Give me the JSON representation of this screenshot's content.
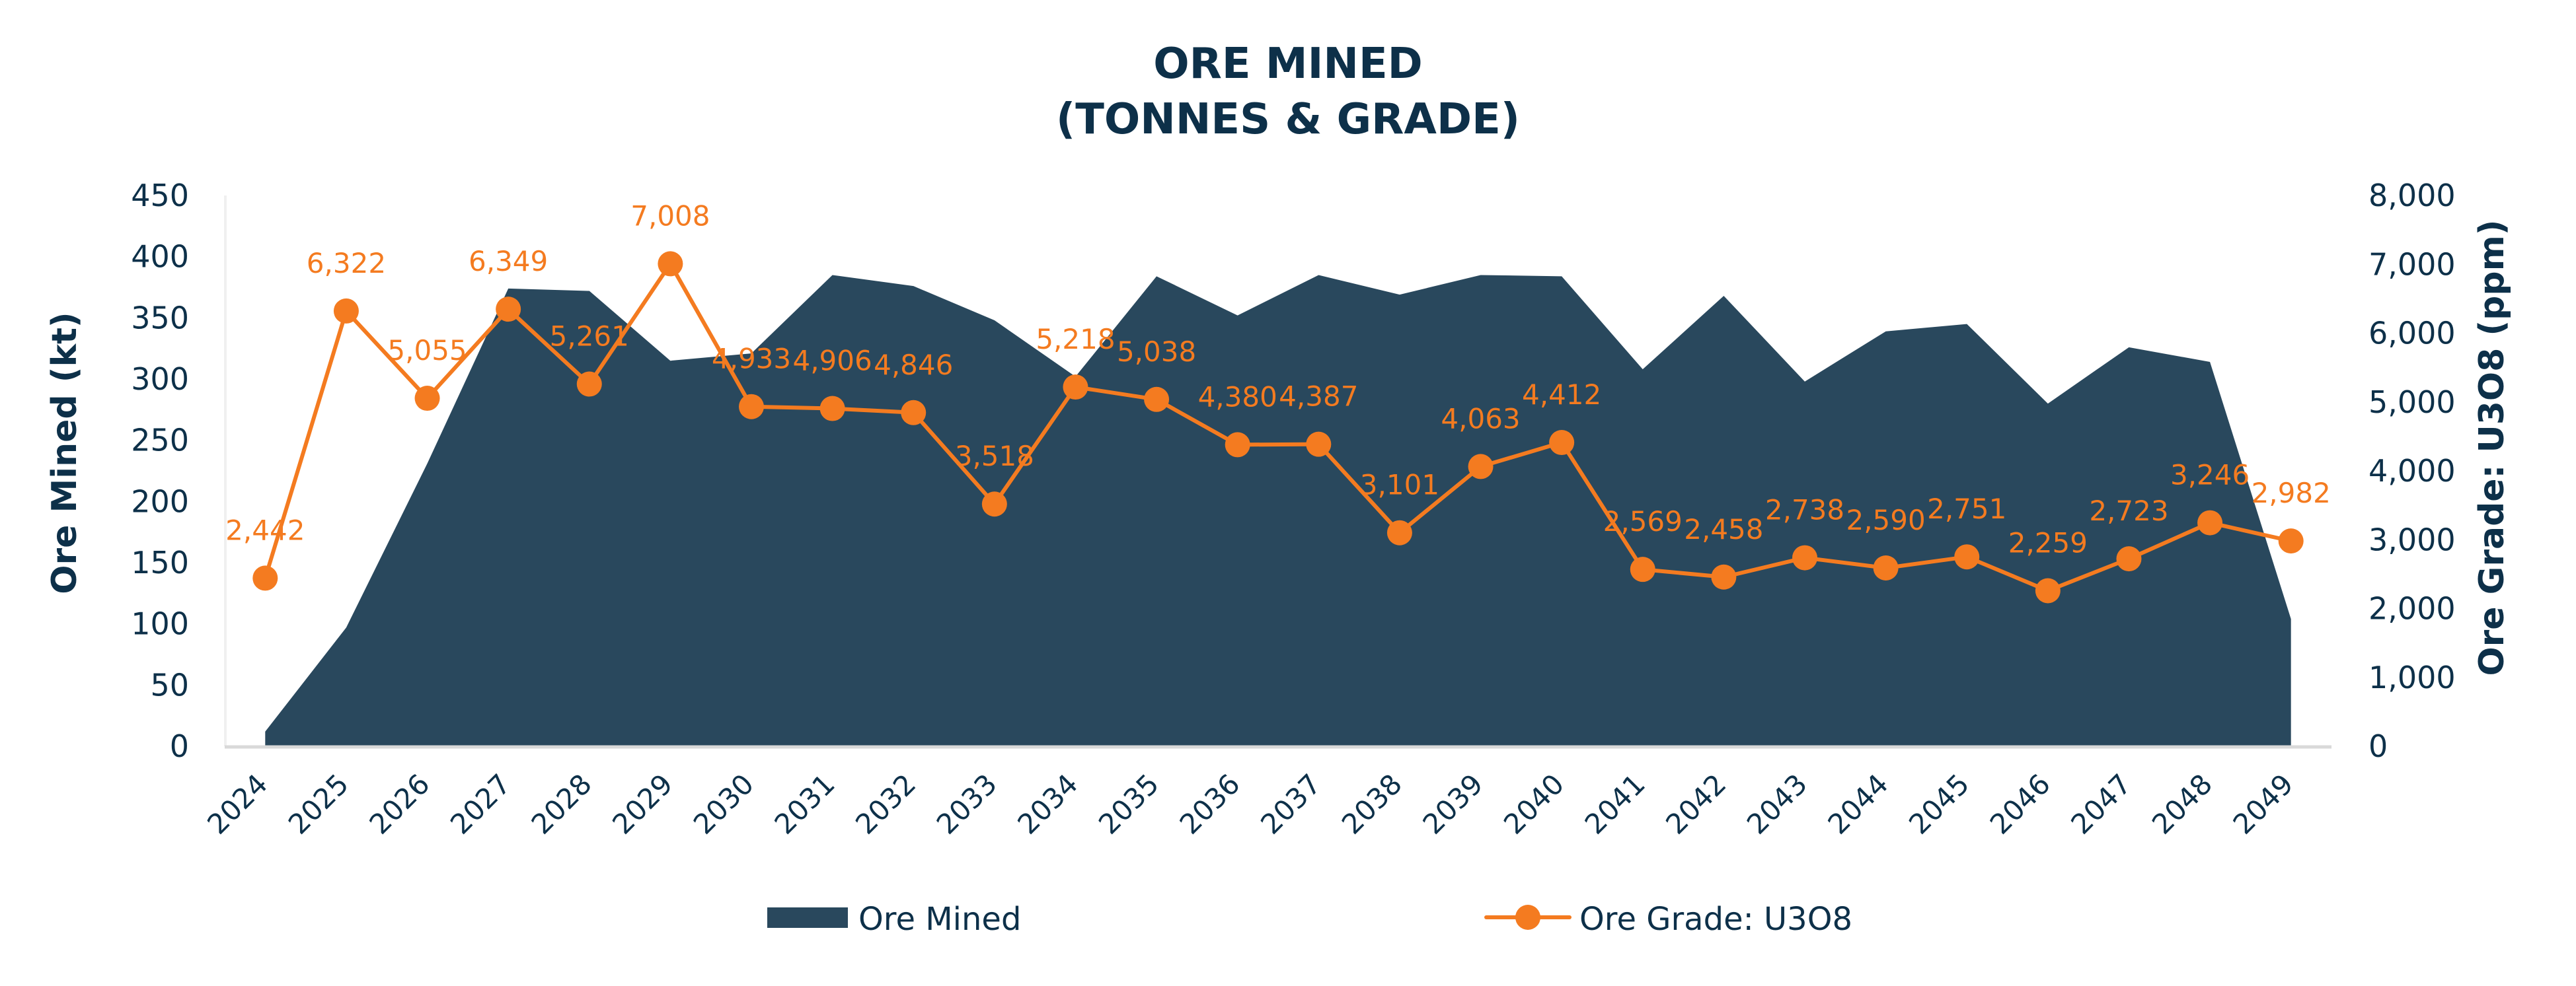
{
  "chart_data": {
    "type": "area+line",
    "title_lines": [
      "ORE MINED",
      "(TONNES & GRADE)"
    ],
    "categories": [
      "2024",
      "2025",
      "2026",
      "2027",
      "2028",
      "2029",
      "2030",
      "2031",
      "2032",
      "2033",
      "2034",
      "2035",
      "2036",
      "2037",
      "2038",
      "2039",
      "2040",
      "2041",
      "2042",
      "2043",
      "2044",
      "2045",
      "2046",
      "2047",
      "2048",
      "2049"
    ],
    "y_left": {
      "label": "Ore Mined (kt)",
      "range": [
        0,
        450
      ],
      "ticks": [
        "0",
        "50",
        "100",
        "150",
        "200",
        "250",
        "300",
        "350",
        "400",
        "450"
      ],
      "tick_values": [
        0,
        50,
        100,
        150,
        200,
        250,
        300,
        350,
        400,
        450
      ]
    },
    "y_right": {
      "label": "Ore Grade: U3O8 (ppm)",
      "range": [
        0,
        8000
      ],
      "ticks": [
        "0",
        "1,000",
        "2,000",
        "3,000",
        "4,000",
        "5,000",
        "6,000",
        "7,000",
        "8,000"
      ],
      "tick_values": [
        0,
        1000,
        2000,
        3000,
        4000,
        5000,
        6000,
        7000,
        8000
      ]
    },
    "series": [
      {
        "name": "Ore Mined",
        "type": "area",
        "axis": "left",
        "color": "#29485d",
        "values": [
          12,
          97,
          231,
          374,
          372,
          315,
          321,
          385,
          376,
          348,
          302,
          384,
          352,
          385,
          369,
          385,
          384,
          308,
          368,
          298,
          339,
          345,
          280,
          326,
          314,
          104
        ]
      },
      {
        "name": "Ore Grade: U3O8",
        "type": "line",
        "axis": "right",
        "color": "#f47b20",
        "marker": "circle",
        "values": [
          2442,
          6322,
          5055,
          6349,
          5261,
          7008,
          4933,
          4906,
          4846,
          3518,
          5218,
          5038,
          4380,
          4387,
          3101,
          4063,
          4412,
          2569,
          2458,
          2738,
          2590,
          2751,
          2259,
          2723,
          3246,
          2982
        ],
        "labels": [
          "2,442",
          "6,322",
          "5,055",
          "6,349",
          "5,261",
          "7,008",
          "4,933",
          "4,906",
          "4,846",
          "3,518",
          "5,218",
          "5,038",
          "4,380",
          "4,387",
          "3,101",
          "4,063",
          "4,412",
          "2,569",
          "2,458",
          "2,738",
          "2,590",
          "2,751",
          "2,259",
          "2,723",
          "3,246",
          "2,982"
        ]
      }
    ],
    "legend": {
      "position": "bottom",
      "items": [
        {
          "label": "Ore Mined",
          "symbol": "area-swatch"
        },
        {
          "label": "Ore Grade: U3O8",
          "symbol": "line-with-circle-marker"
        }
      ]
    },
    "grid": false,
    "colors": {
      "text": "#0d3049",
      "area": "#29485d",
      "line": "#f47b20",
      "axis": "#d9d9d9"
    }
  }
}
